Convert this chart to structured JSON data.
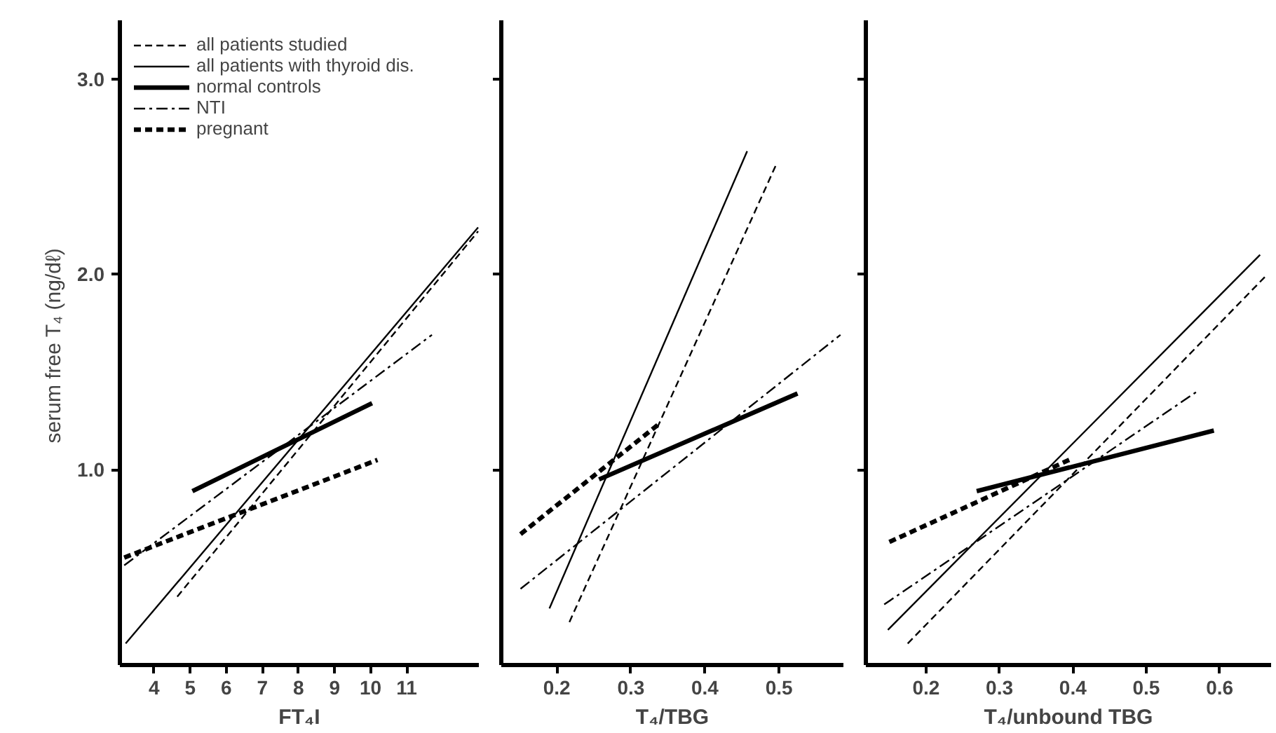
{
  "chart_data": [
    {
      "type": "line",
      "xlabel": "FT₄I",
      "ylabel": "serum free T₄  (ng/dℓ)",
      "xlim": [
        3.05,
        13.0
      ],
      "ylim": [
        0,
        3.3
      ],
      "xticks": [
        4,
        5,
        6,
        7,
        8,
        9,
        10,
        11
      ],
      "yticks": [
        {
          "value": 1,
          "label": "1.0"
        },
        {
          "value": 2,
          "label": "2.0"
        },
        {
          "value": 3,
          "label": "3.0"
        }
      ],
      "grid": false,
      "legend": "top left",
      "series": [
        {
          "name": "all patients studied",
          "color": "#000000",
          "line_style": "dashed",
          "x": [
            4.64,
            12.98
          ],
          "values": [
            0.35,
            2.22
          ]
        },
        {
          "name": "all patients with thyroid dis.",
          "color": "#000000",
          "line_style": "solid",
          "x": [
            3.21,
            12.98
          ],
          "values": [
            0.11,
            2.24
          ]
        },
        {
          "name": "normal controls",
          "color": "#000000",
          "line_style": "solid",
          "x": [
            5.06,
            10.04
          ],
          "values": [
            0.89,
            1.34
          ]
        },
        {
          "name": "NTI",
          "color": "#000000",
          "line_style": "dashdot",
          "x": [
            3.17,
            11.7
          ],
          "values": [
            0.51,
            1.69
          ]
        },
        {
          "name": "pregnant",
          "color": "#000000",
          "line_style": "dashed",
          "x": [
            3.17,
            10.19
          ],
          "values": [
            0.55,
            1.05
          ]
        }
      ]
    },
    {
      "type": "line",
      "xlabel": "T₄/TBG",
      "xlim": [
        0.125,
        0.587
      ],
      "ylim": [
        0,
        3.3
      ],
      "xticks": [
        0.2,
        0.3,
        0.4,
        0.5
      ],
      "yticks": [
        {
          "value": 1,
          "label": null
        },
        {
          "value": 2,
          "label": null
        },
        {
          "value": 3,
          "label": null
        }
      ],
      "tick_labels": "x",
      "grid": false,
      "series": [
        {
          "color": "#000000",
          "line_style": "dashed",
          "x": [
            0.217,
            0.496
          ],
          "values": [
            0.22,
            2.56
          ]
        },
        {
          "color": "#000000",
          "line_style": "solid",
          "x": [
            0.19,
            0.457
          ],
          "values": [
            0.29,
            2.63
          ]
        },
        {
          "color": "#000000",
          "line_style": "solid",
          "x": [
            0.257,
            0.525
          ],
          "values": [
            0.95,
            1.39
          ]
        },
        {
          "color": "#000000",
          "line_style": "dashdot",
          "x": [
            0.151,
            0.583
          ],
          "values": [
            0.39,
            1.69
          ]
        },
        {
          "color": "#000000",
          "line_style": "dashed",
          "x": [
            0.151,
            0.34
          ],
          "values": [
            0.67,
            1.24
          ]
        }
      ]
    },
    {
      "type": "line",
      "xlabel": "T₄/unbound TBG",
      "xlim": [
        0.118,
        0.67
      ],
      "ylim": [
        0,
        3.3
      ],
      "xticks": [
        0.2,
        0.3,
        0.4,
        0.5,
        0.6
      ],
      "yticks": [
        {
          "value": 1,
          "label": null
        },
        {
          "value": 2,
          "label": null
        },
        {
          "value": 3,
          "label": null
        }
      ],
      "tick_labels": "x",
      "grid": false,
      "series": [
        {
          "color": "#000000",
          "line_style": "dashed",
          "x": [
            0.175,
            0.665
          ],
          "values": [
            0.11,
            2.0
          ]
        },
        {
          "color": "#000000",
          "line_style": "solid",
          "x": [
            0.148,
            0.655
          ],
          "values": [
            0.18,
            2.1
          ]
        },
        {
          "color": "#000000",
          "line_style": "solid",
          "x": [
            0.269,
            0.592
          ],
          "values": [
            0.89,
            1.2
          ]
        },
        {
          "color": "#000000",
          "line_style": "dashdot",
          "x": [
            0.143,
            0.569
          ],
          "values": [
            0.31,
            1.4
          ]
        },
        {
          "color": "#000000",
          "line_style": "dashed",
          "x": [
            0.15,
            0.395
          ],
          "values": [
            0.63,
            1.05
          ]
        }
      ]
    }
  ]
}
